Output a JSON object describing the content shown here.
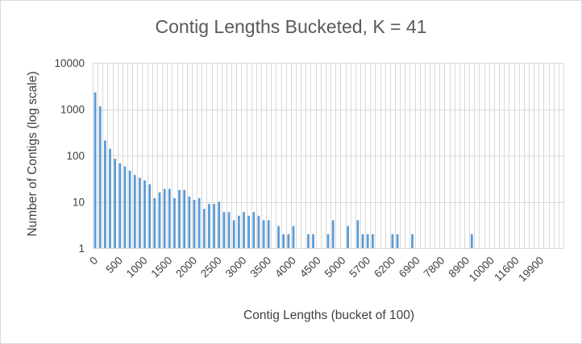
{
  "chart_data": {
    "type": "bar",
    "title": "Contig Lengths Bucketed, K = 41",
    "xlabel": "Contig Lengths (bucket of 100)",
    "ylabel": "Number of Contigs (log scale)",
    "y_scale": "log",
    "ylim": [
      1,
      10000
    ],
    "y_ticks": [
      1,
      10,
      100,
      1000,
      10000
    ],
    "y_tick_labels": [
      "1",
      "10",
      "100",
      "1000",
      "10000"
    ],
    "x_tick_labels": [
      "0",
      "500",
      "1000",
      "1500",
      "2000",
      "2500",
      "3000",
      "3500",
      "4000",
      "4500",
      "5000",
      "5700",
      "6200",
      "6900",
      "7800",
      "8900",
      "10000",
      "11600",
      "19900"
    ],
    "bucket_count": 95,
    "label_every": 5,
    "grid": true,
    "legend": "none",
    "series": [
      {
        "name": "Number of Contigs",
        "values": [
          2300,
          1150,
          210,
          140,
          85,
          68,
          58,
          47,
          38,
          33,
          29,
          24,
          12,
          16,
          19,
          19,
          12,
          18,
          18,
          13,
          11,
          12,
          7,
          9,
          9,
          10,
          6,
          6,
          4,
          5,
          6,
          5,
          6,
          5,
          4,
          4,
          1,
          3,
          2,
          2,
          3,
          1,
          1,
          2,
          2,
          1,
          1,
          2,
          4,
          1,
          1,
          3,
          1,
          4,
          2,
          2,
          2,
          1,
          1,
          1,
          2,
          2,
          1,
          1,
          2,
          1,
          1,
          1,
          1,
          1,
          1,
          1,
          1,
          1,
          1,
          1,
          2,
          1,
          1,
          1,
          1,
          1,
          1,
          1,
          1,
          1,
          1,
          1,
          1,
          1,
          1,
          1,
          1,
          1,
          1
        ]
      }
    ]
  }
}
